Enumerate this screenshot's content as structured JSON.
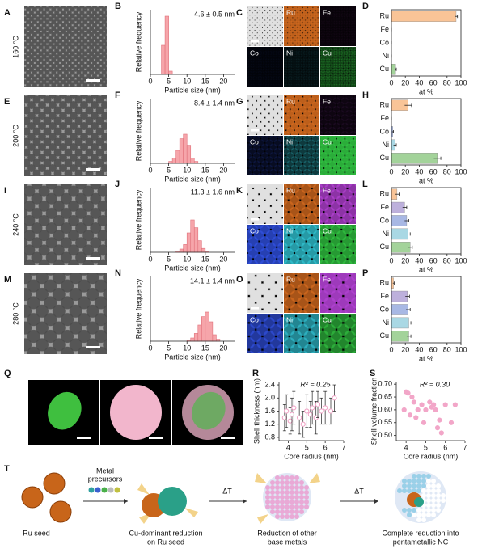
{
  "rows": [
    {
      "image_panel": "A",
      "temperature": "160 °C",
      "map_panel": "C",
      "map_labels": [
        "Ru",
        "Fe",
        "Co",
        "Ni",
        "Cu"
      ]
    },
    {
      "image_panel": "E",
      "temperature": "200 °C",
      "map_panel": "G",
      "map_labels": [
        "Ru",
        "Fe",
        "Co",
        "Ni",
        "Cu"
      ]
    },
    {
      "image_panel": "I",
      "temperature": "240 °C",
      "map_panel": "K",
      "map_labels": [
        "Ru",
        "Fe",
        "Co",
        "Ni",
        "Cu"
      ]
    },
    {
      "image_panel": "M",
      "temperature": "280 °C",
      "map_panel": "O",
      "map_labels": [
        "Ru",
        "Fe",
        "Co",
        "Ni",
        "Cu"
      ]
    }
  ],
  "render_panel": "Q",
  "chart_data": [
    {
      "type": "histogram",
      "panel": "B",
      "bins": [
        3,
        4,
        5,
        6
      ],
      "values": [
        0.45,
        0.9,
        0.05
      ],
      "color": "#f6a5aa",
      "xlim": [
        0,
        23
      ],
      "ylim": [
        0,
        1
      ],
      "xticks": [
        0,
        5,
        10,
        15,
        20
      ],
      "xlabel": "Particle size (nm)",
      "ylabel": "Relative frequency",
      "annotation": "4.6 ± 0.5 nm"
    },
    {
      "type": "histogram",
      "panel": "F",
      "bins": [
        5,
        6,
        7,
        8,
        9,
        10,
        11,
        12,
        13
      ],
      "values": [
        0.03,
        0.08,
        0.2,
        0.38,
        0.45,
        0.28,
        0.08,
        0.03
      ],
      "color": "#f6a5aa",
      "xlim": [
        0,
        23
      ],
      "ylim": [
        0,
        1
      ],
      "xticks": [
        0,
        5,
        10,
        15,
        20
      ],
      "xlabel": "Particle size (nm)",
      "ylabel": "Relative frequency",
      "annotation": "8.4 ± 1.4 nm"
    },
    {
      "type": "histogram",
      "panel": "J",
      "bins": [
        7,
        8,
        9,
        10,
        11,
        12,
        13,
        14,
        15,
        16
      ],
      "values": [
        0.02,
        0.05,
        0.12,
        0.3,
        0.5,
        0.38,
        0.18,
        0.06,
        0.02
      ],
      "color": "#f6a5aa",
      "xlim": [
        0,
        23
      ],
      "ylim": [
        0,
        1
      ],
      "xticks": [
        0,
        5,
        10,
        15,
        20
      ],
      "xlabel": "Particle size (nm)",
      "ylabel": "Relative frequency",
      "annotation": "11.3 ± 1.6 nm"
    },
    {
      "type": "histogram",
      "panel": "N",
      "bins": [
        10,
        11,
        12,
        13,
        14,
        15,
        16,
        17,
        18,
        19
      ],
      "values": [
        0.02,
        0.05,
        0.12,
        0.25,
        0.38,
        0.45,
        0.3,
        0.1,
        0.03
      ],
      "color": "#f6a5aa",
      "xlim": [
        0,
        23
      ],
      "ylim": [
        0,
        1
      ],
      "xticks": [
        0,
        5,
        10,
        15,
        20
      ],
      "xlabel": "Particle size (nm)",
      "ylabel": "Relative frequency",
      "annotation": "14.1 ± 1.4 nm"
    },
    {
      "type": "bar",
      "panel": "D",
      "categories": [
        "Ru",
        "Fe",
        "Co",
        "Ni",
        "Cu"
      ],
      "values": [
        93,
        0,
        0,
        0,
        6
      ],
      "errors": [
        2,
        0,
        0,
        0,
        1
      ],
      "colors": [
        "#f9c497",
        "#bdb0dc",
        "#a8b8e4",
        "#a9d8e4",
        "#a3d39a"
      ],
      "xlim": [
        0,
        100
      ],
      "xticks": [
        0,
        20,
        40,
        60,
        80,
        100
      ],
      "xlabel": "at %"
    },
    {
      "type": "bar",
      "panel": "H",
      "categories": [
        "Ru",
        "Fe",
        "Co",
        "Ni",
        "Cu"
      ],
      "values": [
        24,
        0,
        2,
        5,
        66
      ],
      "errors": [
        5,
        0,
        1,
        2,
        5
      ],
      "colors": [
        "#f9c497",
        "#bdb0dc",
        "#a8b8e4",
        "#a9d8e4",
        "#a3d39a"
      ],
      "xlim": [
        0,
        100
      ],
      "xticks": [
        0,
        20,
        40,
        60,
        80,
        100
      ],
      "xlabel": "at %"
    },
    {
      "type": "bar",
      "panel": "L",
      "categories": [
        "Ru",
        "Fe",
        "Co",
        "Ni",
        "Cu"
      ],
      "values": [
        8,
        19,
        22,
        24,
        27
      ],
      "errors": [
        3,
        3,
        3,
        3,
        3
      ],
      "colors": [
        "#f9c497",
        "#bdb0dc",
        "#a8b8e4",
        "#a9d8e4",
        "#a3d39a"
      ],
      "xlim": [
        0,
        100
      ],
      "xticks": [
        0,
        20,
        40,
        60,
        80,
        100
      ],
      "xlabel": "at %"
    },
    {
      "type": "bar",
      "panel": "P",
      "categories": [
        "Ru",
        "Fe",
        "Co",
        "Ni",
        "Cu"
      ],
      "values": [
        3,
        23,
        24,
        25,
        25
      ],
      "errors": [
        1,
        3,
        3,
        3,
        3
      ],
      "colors": [
        "#f9c497",
        "#bdb0dc",
        "#a8b8e4",
        "#a9d8e4",
        "#a3d39a"
      ],
      "xlim": [
        0,
        100
      ],
      "xticks": [
        0,
        20,
        40,
        60,
        80,
        100
      ],
      "xlabel": "at %"
    },
    {
      "type": "scatter",
      "panel": "R",
      "x": [
        3.8,
        3.9,
        4.1,
        4.2,
        4.3,
        4.6,
        4.8,
        5.0,
        5.2,
        5.3,
        5.5,
        5.6,
        5.8,
        6.0,
        6.3,
        6.5
      ],
      "values": [
        1.4,
        1.6,
        1.3,
        1.5,
        1.7,
        1.4,
        1.2,
        1.6,
        1.5,
        1.7,
        1.4,
        1.8,
        1.6,
        1.7,
        1.6,
        2.0
      ],
      "errors": [
        0.4,
        0.5,
        0.4,
        0.5,
        0.5,
        0.5,
        0.4,
        0.5,
        0.4,
        0.5,
        0.5,
        0.4,
        0.4,
        0.5,
        0.4,
        0.4
      ],
      "color": "#f0a0c4",
      "marker": "hollow",
      "xlim": [
        3.5,
        7
      ],
      "ylim": [
        0.7,
        2.5
      ],
      "xticks": [
        4,
        5,
        6,
        7
      ],
      "yticks": [
        0.8,
        1.2,
        1.6,
        {
          "value": 2,
          "label": "2.0"
        },
        2.4
      ],
      "xlabel": "Core radius (nm)",
      "ylabel": "Shell thickness (nm)",
      "annotation": "R² = 0.25"
    },
    {
      "type": "scatter",
      "panel": "S",
      "x": [
        3.9,
        4.0,
        4.1,
        4.2,
        4.3,
        4.4,
        4.5,
        4.6,
        4.8,
        4.9,
        5.0,
        5.2,
        5.3,
        5.4,
        5.5,
        5.6,
        5.7,
        5.8,
        6.0,
        6.3,
        6.5
      ],
      "values": [
        0.6,
        0.67,
        0.665,
        0.58,
        0.65,
        0.63,
        0.57,
        0.6,
        0.62,
        0.55,
        0.6,
        0.63,
        0.61,
        0.62,
        0.6,
        0.53,
        0.56,
        0.51,
        0.62,
        0.55,
        0.62
      ],
      "color": "#f2a6c8",
      "marker": "filled",
      "xlim": [
        3.5,
        7
      ],
      "ylim": [
        0.48,
        0.71
      ],
      "xticks": [
        4,
        5,
        6,
        7
      ],
      "yticks": [
        {
          "value": 0.5,
          "label": "0.50"
        },
        0.55,
        {
          "value": 0.6,
          "label": "0.60"
        },
        0.65,
        {
          "value": 0.7,
          "label": "0.70"
        }
      ],
      "xlabel": "Core radius (nm)",
      "ylabel": "Shell volume fraction",
      "annotation": "R² = 0.30"
    }
  ],
  "schematic": {
    "panel": "T",
    "stages": [
      {
        "label_lines": [
          "Ru seed"
        ]
      },
      {
        "label_lines": [
          "Cu-dominant reduction",
          "on Ru seed"
        ]
      },
      {
        "label_lines": [
          "Reduction of other",
          "base metals"
        ]
      },
      {
        "label_lines": [
          "Complete reduction into",
          "pentametallic NC"
        ]
      }
    ],
    "precursor_label_lines": [
      "Metal",
      "precursors"
    ],
    "heat_labels": [
      "ΔT",
      "ΔT"
    ]
  }
}
